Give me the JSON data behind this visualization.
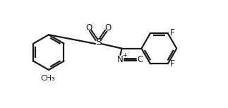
{
  "bg_color": "#ffffff",
  "line_color": "#1a1a1a",
  "line_width": 1.6,
  "font_size": 8.5,
  "figsize": [
    3.23,
    1.53
  ],
  "dpi": 100,
  "xlim": [
    0,
    10
  ],
  "ylim": [
    0,
    4.75
  ]
}
